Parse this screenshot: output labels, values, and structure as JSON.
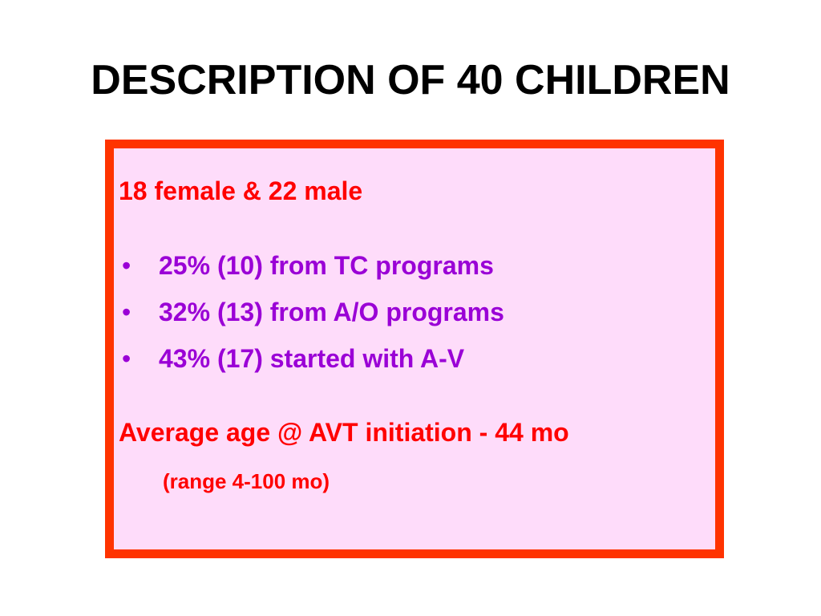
{
  "slide": {
    "title": "DESCRIPTION OF 40 CHILDREN",
    "gender_line": "18 female & 22 male",
    "bullet_char": "•",
    "bullets": [
      "25% (10) from TC programs",
      "32% (13) from A/O programs",
      "43% (17) started with A-V"
    ],
    "average_line": "Average age @ AVT initiation - 44 mo",
    "range_line": "(range 4-100 mo)"
  },
  "colors": {
    "title": "#000000",
    "box_border": "#ff3300",
    "box_fill": "#fedcfa",
    "red_text": "#ff0000",
    "purple_text": "#9a00d6"
  }
}
